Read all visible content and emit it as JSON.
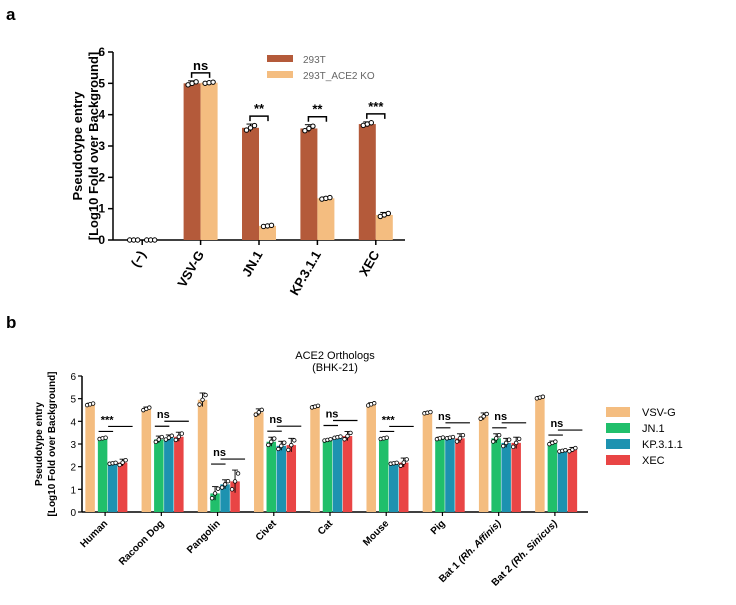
{
  "panel_labels": {
    "a": "a",
    "b": "b"
  },
  "colors": {
    "brown": "#b45a3a",
    "peach": "#f4bd80",
    "vsvg": "#f4bd80",
    "jn1": "#20bf6b",
    "kp311": "#1d92b0",
    "xec": "#e94545"
  },
  "chart_data": [
    {
      "type": "bar",
      "title": "",
      "xlabel": "",
      "ylabel": [
        "Pseudotype entry",
        "[Log10 Fold over Background]"
      ],
      "ylim": [
        0,
        6
      ],
      "yticks": [
        0,
        1,
        2,
        3,
        4,
        5,
        6
      ],
      "categories": [
        "(−)",
        "VSV-G",
        "JN.1",
        "KP.3.1.1",
        "XEC"
      ],
      "legend_position": "top-right",
      "series": [
        {
          "name": "293T",
          "color_key": "brown",
          "values": [
            0.0,
            5.0,
            3.58,
            3.56,
            3.7
          ],
          "errors": [
            0.0,
            0.08,
            0.12,
            0.12,
            0.07
          ]
        },
        {
          "name": "293T_ACE2 KO",
          "color_key": "peach",
          "values": [
            0.0,
            5.02,
            0.45,
            1.33,
            0.8
          ],
          "errors": [
            0.0,
            0.03,
            0.03,
            0.04,
            0.08
          ]
        }
      ],
      "significance": [
        {
          "category": 1,
          "label": "ns"
        },
        {
          "category": 2,
          "label": "**"
        },
        {
          "category": 3,
          "label": "**"
        },
        {
          "category": 4,
          "label": "***"
        }
      ]
    },
    {
      "type": "bar",
      "title": [
        "ACE2 Orthologs",
        "(BHK-21)"
      ],
      "xlabel": "",
      "ylabel": [
        "Pseudotype entry",
        "[Log10 Fold over Background]"
      ],
      "ylim": [
        0,
        6
      ],
      "yticks": [
        0,
        1,
        2,
        3,
        4,
        5,
        6
      ],
      "categories": [
        "Human",
        "Racoon Dog",
        "Pangolin",
        "Civet",
        "Cat",
        "Mouse",
        "Pig",
        "Bat 1 (Rh. Affinis)",
        "Bat 2 (Rh. Sinicus)"
      ],
      "categories_rich": [
        {
          "plain": "Human",
          "italic": ""
        },
        {
          "plain": "Racoon Dog",
          "italic": ""
        },
        {
          "plain": "Pangolin",
          "italic": ""
        },
        {
          "plain": "Civet",
          "italic": ""
        },
        {
          "plain": "Cat",
          "italic": ""
        },
        {
          "plain": "Mouse",
          "italic": ""
        },
        {
          "plain": "Pig",
          "italic": ""
        },
        {
          "plain": "Bat 1 ",
          "italic": "(Rh. Affinis)"
        },
        {
          "plain": "Bat 2 ",
          "italic": "(Rh. Sinicus)"
        }
      ],
      "legend_position": "right",
      "series": [
        {
          "name": "VSV-G",
          "color_key": "vsvg",
          "values": [
            4.75,
            4.55,
            4.95,
            4.4,
            4.65,
            4.75,
            4.38,
            4.22,
            5.05
          ],
          "errors": [
            0.05,
            0.08,
            0.3,
            0.15,
            0.05,
            0.07,
            0.04,
            0.15,
            0.05
          ]
        },
        {
          "name": "JN.1",
          "color_key": "jn1",
          "values": [
            3.25,
            3.2,
            0.82,
            3.1,
            3.18,
            3.25,
            3.25,
            3.25,
            3.05
          ],
          "errors": [
            0.04,
            0.15,
            0.3,
            0.2,
            0.04,
            0.04,
            0.05,
            0.2,
            0.08
          ]
        },
        {
          "name": "KP.3.1.1",
          "color_key": "kp311",
          "values": [
            2.15,
            3.28,
            1.22,
            2.92,
            3.3,
            2.15,
            3.28,
            3.05,
            2.7
          ],
          "errors": [
            0.03,
            0.12,
            0.2,
            0.2,
            0.04,
            0.03,
            0.04,
            0.2,
            0.04
          ]
        },
        {
          "name": "XEC",
          "color_key": "xec",
          "values": [
            2.18,
            3.32,
            1.35,
            2.95,
            3.35,
            2.18,
            3.25,
            3.05,
            2.75
          ],
          "errors": [
            0.15,
            0.2,
            0.5,
            0.3,
            0.2,
            0.2,
            0.2,
            0.25,
            0.1
          ]
        }
      ],
      "significance": [
        {
          "category": 0,
          "label": "***"
        },
        {
          "category": 1,
          "label": "ns"
        },
        {
          "category": 2,
          "label": "ns"
        },
        {
          "category": 3,
          "label": "ns"
        },
        {
          "category": 4,
          "label": "ns"
        },
        {
          "category": 5,
          "label": "***"
        },
        {
          "category": 6,
          "label": "ns"
        },
        {
          "category": 7,
          "label": "ns"
        },
        {
          "category": 8,
          "label": "ns"
        }
      ]
    }
  ]
}
